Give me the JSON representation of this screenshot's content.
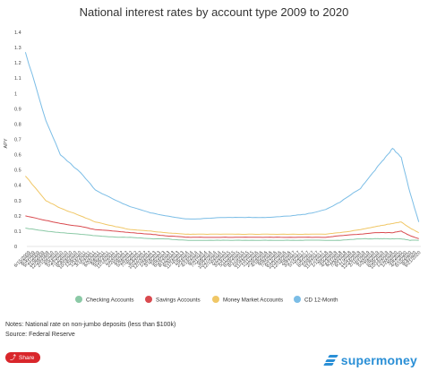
{
  "chart_data": {
    "type": "line",
    "title": "National interest rates by account type 2009 to 2020",
    "ylabel": "APY",
    "xlabel": "",
    "ylim": [
      0,
      1.4
    ],
    "yticks": [
      "0",
      "0.1",
      "0.2",
      "0.3",
      "0.4",
      "0.5",
      "0.6",
      "0.7",
      "0.8",
      "0.9",
      "1",
      "1.1",
      "1.2",
      "1.3",
      "1.4"
    ],
    "x_tick_labels": [
      "6/15/2009",
      "8/3/2009",
      "9/21/2009",
      "11/9/2009",
      "12/28/2009",
      "2/15/2010",
      "4/5/2010",
      "5/24/2010",
      "7/12/2010",
      "8/30/2010",
      "10/18/2010",
      "12/6/2010",
      "1/24/2011",
      "3/14/2011",
      "5/2/2011",
      "6/20/2011",
      "8/8/2011",
      "9/26/2011",
      "11/14/2011",
      "1/2/2012",
      "2/20/2012",
      "4/9/2012",
      "5/28/2012",
      "7/16/2012",
      "9/3/2012",
      "10/22/2012",
      "12/10/2012",
      "1/28/2013",
      "3/18/2013",
      "5/6/2013",
      "6/24/2013",
      "8/12/2013",
      "9/30/2013",
      "11/18/2013",
      "1/6/2014",
      "2/24/2014",
      "4/14/2014",
      "6/2/2014",
      "7/21/2014",
      "9/8/2014",
      "10/27/2014",
      "12/15/2014",
      "2/2/2015",
      "3/23/2015",
      "5/11/2015",
      "6/29/2015",
      "8/17/2015",
      "10/5/2015",
      "11/23/2015",
      "1/11/2016",
      "2/29/2016",
      "4/18/2016",
      "6/6/2016",
      "7/25/2016",
      "9/12/2016",
      "10/31/2016",
      "12/19/2016",
      "2/6/2017",
      "3/27/2017",
      "5/15/2017",
      "7/3/2017",
      "8/21/2017",
      "10/9/2017",
      "11/27/2017",
      "1/15/2018",
      "3/5/2018",
      "4/23/2018",
      "6/11/2018",
      "7/30/2018",
      "9/17/2018",
      "11/5/2018",
      "12/24/2018",
      "2/11/2019",
      "4/1/2019",
      "5/20/2019",
      "7/8/2019",
      "8/26/2019",
      "10/14/2019",
      "12/2/2019",
      "1/20/2020",
      "3/9/2020",
      "4/27/2020",
      "6/15/2020",
      "8/3/2020",
      "9/21/2020"
    ],
    "x": [
      "2009-06",
      "2010-01",
      "2010-06",
      "2011-01",
      "2011-06",
      "2012-01",
      "2012-06",
      "2013-01",
      "2013-06",
      "2014-01",
      "2014-06",
      "2015-01",
      "2015-06",
      "2016-01",
      "2016-06",
      "2017-01",
      "2017-06",
      "2018-01",
      "2018-06",
      "2019-01",
      "2019-06",
      "2019-09",
      "2019-12",
      "2020-03",
      "2020-06",
      "2020-09"
    ],
    "series": [
      {
        "name": "Checking Accounts",
        "color": "#8bc9a6",
        "values": [
          0.12,
          0.1,
          0.09,
          0.08,
          0.07,
          0.06,
          0.06,
          0.05,
          0.05,
          0.04,
          0.04,
          0.04,
          0.04,
          0.04,
          0.04,
          0.04,
          0.04,
          0.04,
          0.04,
          0.05,
          0.05,
          0.05,
          0.05,
          0.05,
          0.04,
          0.04
        ]
      },
      {
        "name": "Savings Accounts",
        "color": "#d94a4f",
        "values": [
          0.2,
          0.17,
          0.15,
          0.13,
          0.11,
          0.1,
          0.09,
          0.08,
          0.07,
          0.06,
          0.06,
          0.06,
          0.06,
          0.06,
          0.06,
          0.06,
          0.06,
          0.06,
          0.07,
          0.08,
          0.09,
          0.09,
          0.09,
          0.1,
          0.07,
          0.05
        ]
      },
      {
        "name": "Money Market Accounts",
        "color": "#f0c766",
        "values": [
          0.46,
          0.3,
          0.25,
          0.2,
          0.16,
          0.13,
          0.11,
          0.1,
          0.09,
          0.08,
          0.08,
          0.08,
          0.08,
          0.08,
          0.08,
          0.08,
          0.08,
          0.08,
          0.09,
          0.11,
          0.13,
          0.14,
          0.15,
          0.16,
          0.12,
          0.09
        ]
      },
      {
        "name": "CD 12-Month",
        "color": "#7bbde6",
        "values": [
          1.27,
          0.82,
          0.6,
          0.48,
          0.37,
          0.3,
          0.26,
          0.22,
          0.2,
          0.18,
          0.18,
          0.19,
          0.19,
          0.19,
          0.19,
          0.2,
          0.21,
          0.24,
          0.29,
          0.38,
          0.5,
          0.57,
          0.64,
          0.58,
          0.35,
          0.16
        ]
      }
    ],
    "legend_position": "bottom",
    "grid": false
  },
  "notes": "Notes: National rate on non-jumbo deposits (less than $100k)",
  "source": "Source: Federal Reserve",
  "share_label": "Share",
  "brand": "supermoney",
  "icons": {
    "share": "share-icon",
    "logo": "supermoney-logo-icon"
  }
}
